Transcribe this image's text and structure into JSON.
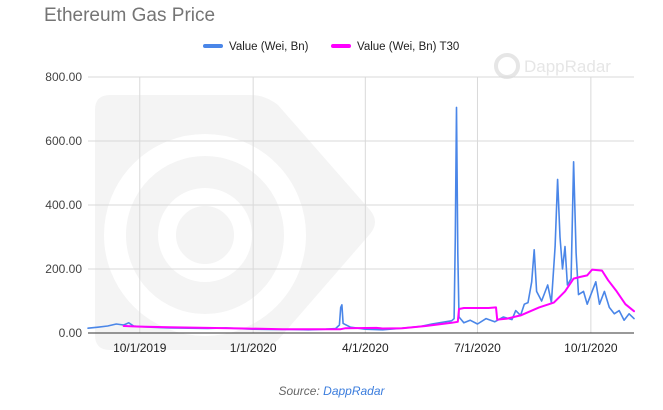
{
  "title": "Ethereum Gas Price",
  "source": {
    "prefix": "Source: ",
    "link_text": "DappRadar"
  },
  "watermark": {
    "text": "DappRadar"
  },
  "colors": {
    "series1": "#4a86e8",
    "series2": "#ff00ff",
    "grid": "#d9d9d9"
  },
  "chart_data": {
    "type": "line",
    "title": "Ethereum Gas Price",
    "xlabel": "",
    "ylabel": "",
    "xlim": [
      "2019-08-20",
      "2020-11-05"
    ],
    "ylim": [
      0,
      800
    ],
    "yticks": [
      {
        "value": 0,
        "label": "0.00"
      },
      {
        "value": 200,
        "label": "200.00"
      },
      {
        "value": 400,
        "label": "400.00"
      },
      {
        "value": 600,
        "label": "600.00"
      },
      {
        "value": 800,
        "label": "800.00"
      }
    ],
    "xticks": [
      {
        "value": "2019-10-01",
        "label": "10/1/2019"
      },
      {
        "value": "2020-01-01",
        "label": "1/1/2020"
      },
      {
        "value": "2020-04-01",
        "label": "4/1/2020"
      },
      {
        "value": "2020-07-01",
        "label": "7/1/2020"
      },
      {
        "value": "2020-10-01",
        "label": "10/1/2020"
      }
    ],
    "grid": true,
    "legend_position": "top",
    "series": [
      {
        "name": "Value (Wei, Bn)",
        "color": "#4a86e8",
        "points": [
          [
            "2019-08-20",
            15
          ],
          [
            "2019-08-28",
            18
          ],
          [
            "2019-09-05",
            22
          ],
          [
            "2019-09-12",
            28
          ],
          [
            "2019-09-18",
            25
          ],
          [
            "2019-09-22",
            32
          ],
          [
            "2019-09-26",
            22
          ],
          [
            "2019-10-01",
            20
          ],
          [
            "2019-10-10",
            18
          ],
          [
            "2019-10-25",
            16
          ],
          [
            "2019-11-10",
            15
          ],
          [
            "2019-11-25",
            14
          ],
          [
            "2019-12-10",
            16
          ],
          [
            "2019-12-25",
            13
          ],
          [
            "2020-01-01",
            12
          ],
          [
            "2020-01-15",
            11
          ],
          [
            "2020-02-01",
            11
          ],
          [
            "2020-02-15",
            10
          ],
          [
            "2020-02-29",
            12
          ],
          [
            "2020-03-08",
            14
          ],
          [
            "2020-03-11",
            25
          ],
          [
            "2020-03-12",
            80
          ],
          [
            "2020-03-13",
            88
          ],
          [
            "2020-03-14",
            30
          ],
          [
            "2020-03-20",
            18
          ],
          [
            "2020-04-01",
            12
          ],
          [
            "2020-04-15",
            10
          ],
          [
            "2020-05-01",
            15
          ],
          [
            "2020-05-15",
            20
          ],
          [
            "2020-05-25",
            28
          ],
          [
            "2020-06-05",
            35
          ],
          [
            "2020-06-10",
            38
          ],
          [
            "2020-06-12",
            45
          ],
          [
            "2020-06-13",
            300
          ],
          [
            "2020-06-14",
            705
          ],
          [
            "2020-06-15",
            250
          ],
          [
            "2020-06-16",
            50
          ],
          [
            "2020-06-20",
            32
          ],
          [
            "2020-06-25",
            40
          ],
          [
            "2020-07-01",
            28
          ],
          [
            "2020-07-08",
            45
          ],
          [
            "2020-07-15",
            35
          ],
          [
            "2020-07-22",
            50
          ],
          [
            "2020-07-29",
            42
          ],
          [
            "2020-08-01",
            70
          ],
          [
            "2020-08-05",
            55
          ],
          [
            "2020-08-08",
            90
          ],
          [
            "2020-08-11",
            95
          ],
          [
            "2020-08-14",
            160
          ],
          [
            "2020-08-16",
            260
          ],
          [
            "2020-08-18",
            130
          ],
          [
            "2020-08-22",
            100
          ],
          [
            "2020-08-27",
            150
          ],
          [
            "2020-08-30",
            95
          ],
          [
            "2020-09-02",
            270
          ],
          [
            "2020-09-04",
            480
          ],
          [
            "2020-09-06",
            300
          ],
          [
            "2020-09-08",
            200
          ],
          [
            "2020-09-10",
            270
          ],
          [
            "2020-09-12",
            150
          ],
          [
            "2020-09-15",
            170
          ],
          [
            "2020-09-17",
            535
          ],
          [
            "2020-09-19",
            250
          ],
          [
            "2020-09-21",
            120
          ],
          [
            "2020-09-25",
            130
          ],
          [
            "2020-09-28",
            90
          ],
          [
            "2020-10-01",
            120
          ],
          [
            "2020-10-05",
            160
          ],
          [
            "2020-10-08",
            90
          ],
          [
            "2020-10-12",
            130
          ],
          [
            "2020-10-16",
            80
          ],
          [
            "2020-10-20",
            60
          ],
          [
            "2020-10-24",
            70
          ],
          [
            "2020-10-28",
            40
          ],
          [
            "2020-11-01",
            60
          ],
          [
            "2020-11-05",
            45
          ]
        ]
      },
      {
        "name": "Value (Wei, Bn) T30",
        "color": "#ff00ff",
        "points": [
          [
            "2019-09-18",
            22
          ],
          [
            "2019-10-01",
            20
          ],
          [
            "2019-10-25",
            18
          ],
          [
            "2019-11-25",
            16
          ],
          [
            "2019-12-25",
            14
          ],
          [
            "2020-01-25",
            12
          ],
          [
            "2020-02-25",
            12
          ],
          [
            "2020-03-12",
            12
          ],
          [
            "2020-03-16",
            15
          ],
          [
            "2020-04-10",
            16
          ],
          [
            "2020-04-15",
            14
          ],
          [
            "2020-05-01",
            15
          ],
          [
            "2020-05-20",
            22
          ],
          [
            "2020-06-10",
            32
          ],
          [
            "2020-06-15",
            35
          ],
          [
            "2020-06-16",
            75
          ],
          [
            "2020-06-20",
            78
          ],
          [
            "2020-07-10",
            78
          ],
          [
            "2020-07-16",
            80
          ],
          [
            "2020-07-17",
            42
          ],
          [
            "2020-07-25",
            45
          ],
          [
            "2020-08-05",
            55
          ],
          [
            "2020-08-20",
            80
          ],
          [
            "2020-09-01",
            95
          ],
          [
            "2020-09-10",
            130
          ],
          [
            "2020-09-17",
            170
          ],
          [
            "2020-09-22",
            175
          ],
          [
            "2020-09-28",
            180
          ],
          [
            "2020-10-02",
            198
          ],
          [
            "2020-10-10",
            195
          ],
          [
            "2020-10-15",
            165
          ],
          [
            "2020-10-22",
            130
          ],
          [
            "2020-10-29",
            90
          ],
          [
            "2020-11-05",
            68
          ]
        ]
      }
    ]
  }
}
